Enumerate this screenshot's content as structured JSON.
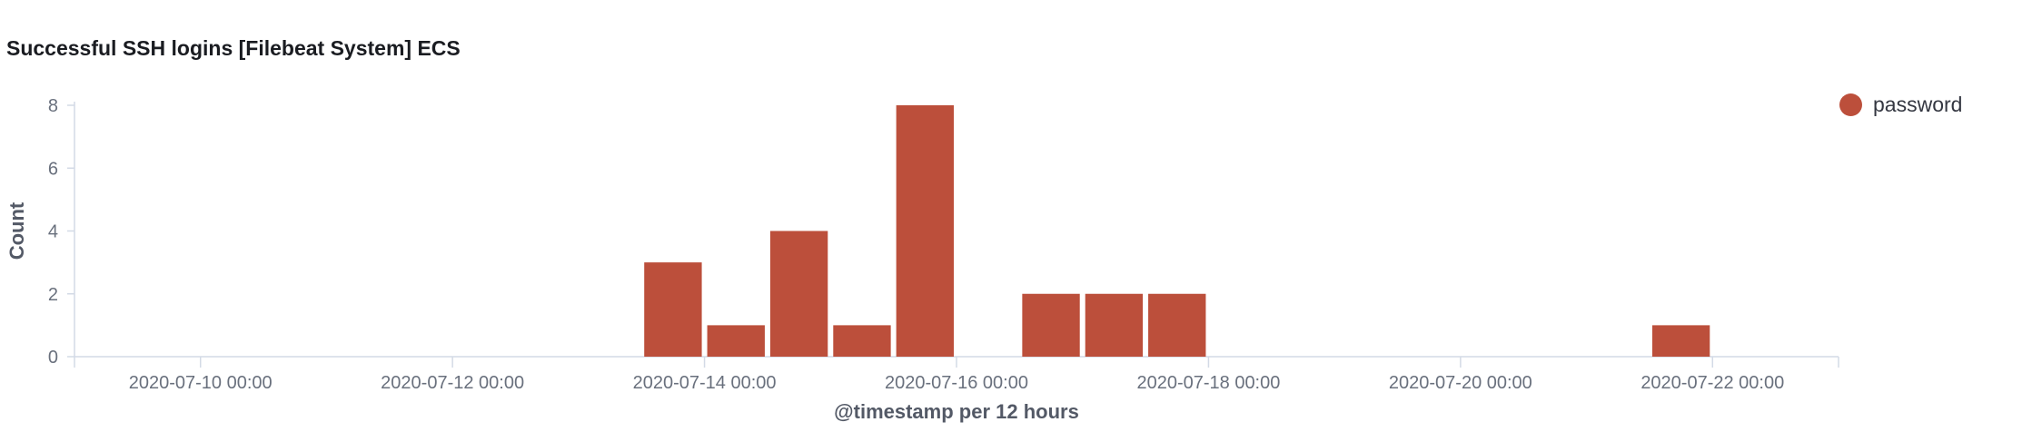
{
  "panel": {
    "title": "Successful SSH logins [Filebeat System] ECS"
  },
  "legend": {
    "items": [
      {
        "label": "password",
        "color": "#bc4f3b"
      }
    ]
  },
  "chart_data": {
    "type": "bar",
    "title": "Successful SSH logins [Filebeat System] ECS",
    "xlabel": "@timestamp per 12 hours",
    "ylabel": "Count",
    "ylim": [
      0,
      8
    ],
    "yticks": [
      0,
      2,
      4,
      6,
      8
    ],
    "xlim": [
      "2020-07-09 00:00",
      "2020-07-23 00:00"
    ],
    "xticks": [
      "2020-07-10 00:00",
      "2020-07-12 00:00",
      "2020-07-14 00:00",
      "2020-07-16 00:00",
      "2020-07-18 00:00",
      "2020-07-20 00:00",
      "2020-07-22 00:00"
    ],
    "interval": "12 hours",
    "grid": false,
    "legend_position": "top-right",
    "series": [
      {
        "name": "password",
        "color": "#bc4f3b",
        "points": [
          {
            "x": "2020-07-13 12:00",
            "y": 3
          },
          {
            "x": "2020-07-14 00:00",
            "y": 1
          },
          {
            "x": "2020-07-14 12:00",
            "y": 4
          },
          {
            "x": "2020-07-15 00:00",
            "y": 1
          },
          {
            "x": "2020-07-15 12:00",
            "y": 8
          },
          {
            "x": "2020-07-16 12:00",
            "y": 2
          },
          {
            "x": "2020-07-17 00:00",
            "y": 2
          },
          {
            "x": "2020-07-17 12:00",
            "y": 2
          },
          {
            "x": "2020-07-21 12:00",
            "y": 1
          }
        ]
      }
    ]
  }
}
